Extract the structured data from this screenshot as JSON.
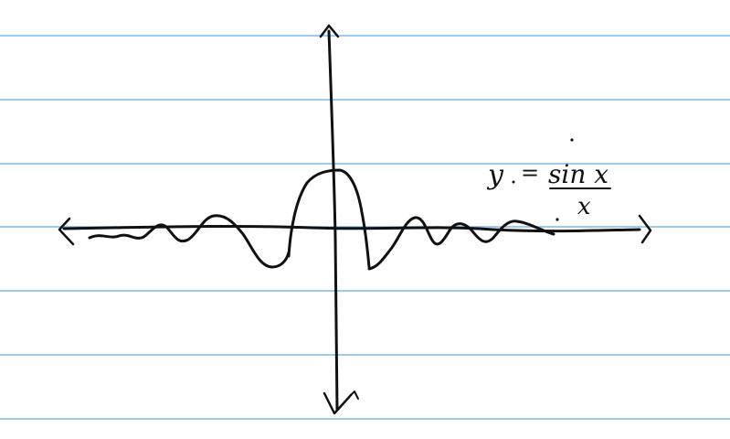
{
  "sketch": {
    "equation": {
      "lhs": "y",
      "equals": "=",
      "numerator": "sin x",
      "denominator": "x"
    }
  },
  "colors": {
    "paper": "#ffffff",
    "ruled_lines": "#7fb8ea",
    "ink": "#111111"
  },
  "ruled_line_count": 7
}
